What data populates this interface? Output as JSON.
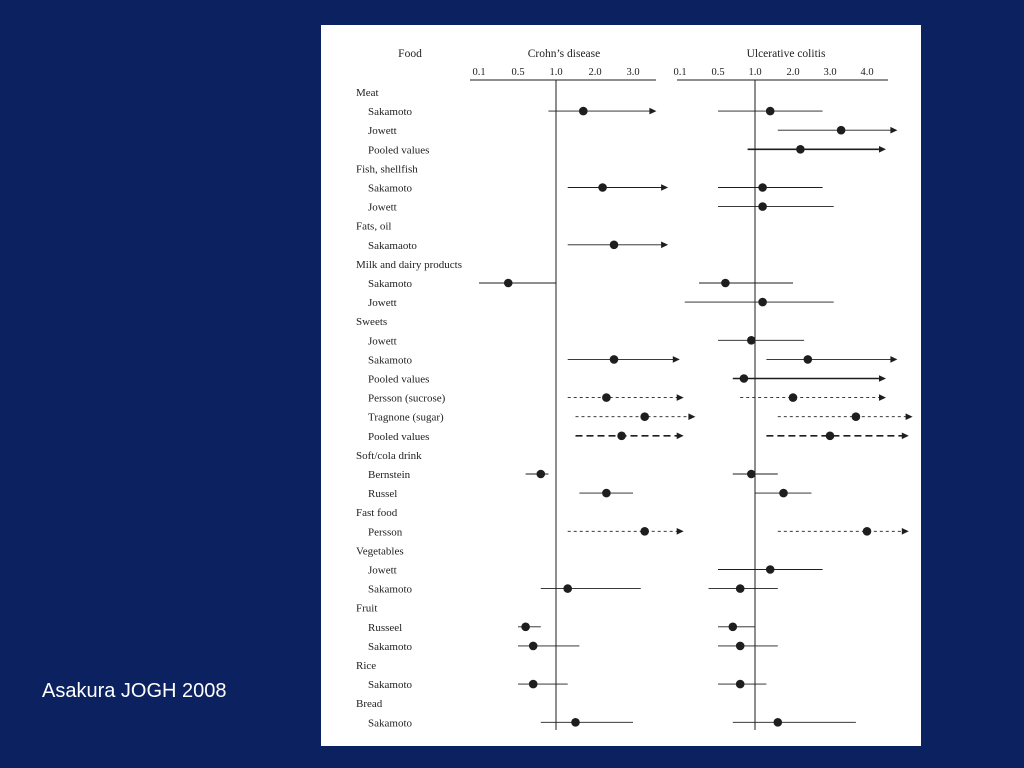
{
  "caption": "Asakura JOGH 2008",
  "chart_data": {
    "type": "forest",
    "food_header": "Food",
    "panels": [
      {
        "key": "cd",
        "title": "Crohn’s disease",
        "ticks": [
          {
            "label": "0.1",
            "value": 0.1
          },
          {
            "label": "0.5",
            "value": 0.5
          },
          {
            "label": "1.0",
            "value": 1.0
          },
          {
            "label": "2.0",
            "value": 2.0
          },
          {
            "label": "3.0",
            "value": 3.0
          }
        ]
      },
      {
        "key": "uc",
        "title": "Ulcerative colitis",
        "ticks": [
          {
            "label": "0.1",
            "value": 0.1
          },
          {
            "label": "0.5",
            "value": 0.5
          },
          {
            "label": "1.0",
            "value": 1.0
          },
          {
            "label": "2.0",
            "value": 2.0
          },
          {
            "label": "3.0",
            "value": 3.0
          },
          {
            "label": "4.0",
            "value": 4.0
          }
        ]
      }
    ],
    "rows": [
      {
        "label": "Meat",
        "kind": "category"
      },
      {
        "label": "Sakamoto",
        "kind": "study",
        "cd": {
          "or": 1.7,
          "lo": 0.9,
          "hi": 3.6,
          "arrow": true,
          "style": "solid"
        },
        "uc": {
          "or": 1.4,
          "lo": 0.5,
          "hi": 2.8,
          "arrow": false,
          "style": "solid"
        }
      },
      {
        "label": "Jowett",
        "kind": "study",
        "cd": null,
        "uc": {
          "or": 3.3,
          "lo": 1.6,
          "hi": 4.8,
          "arrow": true,
          "style": "solid"
        }
      },
      {
        "label": "Pooled values",
        "kind": "study",
        "cd": null,
        "uc": {
          "or": 2.2,
          "lo": 0.9,
          "hi": 4.5,
          "arrow": true,
          "style": "pooled"
        }
      },
      {
        "label": "Fish, shellfish",
        "kind": "category"
      },
      {
        "label": "Sakamoto",
        "kind": "study",
        "cd": {
          "or": 2.2,
          "lo": 1.3,
          "hi": 3.9,
          "arrow": true,
          "style": "solid"
        },
        "uc": {
          "or": 1.2,
          "lo": 0.5,
          "hi": 2.8,
          "arrow": false,
          "style": "solid"
        }
      },
      {
        "label": "Jowett",
        "kind": "study",
        "cd": null,
        "uc": {
          "or": 1.2,
          "lo": 0.5,
          "hi": 3.1,
          "arrow": false,
          "style": "solid"
        }
      },
      {
        "label": "Fats, oil",
        "kind": "category"
      },
      {
        "label": "Sakamaoto",
        "kind": "study",
        "cd": {
          "or": 2.5,
          "lo": 1.3,
          "hi": 3.9,
          "arrow": true,
          "style": "solid"
        },
        "uc": null
      },
      {
        "label": "Milk and dairy products",
        "kind": "category"
      },
      {
        "label": "Sakamoto",
        "kind": "study",
        "cd": {
          "or": 0.4,
          "lo": 0.1,
          "hi": 1.0,
          "arrow": false,
          "style": "solid"
        },
        "uc": {
          "or": 0.6,
          "lo": 0.3,
          "hi": 2.0,
          "arrow": false,
          "style": "solid"
        }
      },
      {
        "label": "Jowett",
        "kind": "study",
        "cd": null,
        "uc": {
          "or": 1.2,
          "lo": 0.15,
          "hi": 3.1,
          "arrow": false,
          "style": "solid"
        }
      },
      {
        "label": "Sweets",
        "kind": "category"
      },
      {
        "label": "Jowett",
        "kind": "study",
        "cd": null,
        "uc": {
          "or": 0.95,
          "lo": 0.5,
          "hi": 2.3,
          "arrow": false,
          "style": "solid"
        }
      },
      {
        "label": "Sakamoto",
        "kind": "study",
        "cd": {
          "or": 2.5,
          "lo": 1.3,
          "hi": 4.2,
          "arrow": true,
          "style": "solid"
        },
        "uc": {
          "or": 2.4,
          "lo": 1.3,
          "hi": 4.8,
          "arrow": true,
          "style": "solid"
        }
      },
      {
        "label": "Pooled values",
        "kind": "study",
        "cd": null,
        "uc": {
          "or": 0.85,
          "lo": 0.7,
          "hi": 4.5,
          "arrow": true,
          "style": "pooled"
        }
      },
      {
        "label": "Persson (sucrose)",
        "kind": "study",
        "cd": {
          "or": 2.3,
          "lo": 1.3,
          "hi": 4.3,
          "arrow": true,
          "style": "dashed"
        },
        "uc": {
          "or": 2.0,
          "lo": 0.8,
          "hi": 4.5,
          "arrow": true,
          "style": "dashed"
        }
      },
      {
        "label": "Tragnone (sugar)",
        "kind": "study",
        "cd": {
          "or": 3.3,
          "lo": 1.5,
          "hi": 4.6,
          "arrow": true,
          "style": "dashed"
        },
        "uc": {
          "or": 3.7,
          "lo": 1.6,
          "hi": 5.2,
          "arrow": true,
          "style": "dashed"
        }
      },
      {
        "label": "Pooled values",
        "kind": "study",
        "cd": {
          "or": 2.7,
          "lo": 1.5,
          "hi": 4.3,
          "arrow": true,
          "style": "pooled-dashed"
        },
        "uc": {
          "or": 3.0,
          "lo": 1.3,
          "hi": 5.1,
          "arrow": true,
          "style": "pooled-dashed"
        }
      },
      {
        "label": "Soft/cola drink",
        "kind": "category"
      },
      {
        "label": "Bernstein",
        "kind": "study",
        "cd": {
          "or": 0.8,
          "lo": 0.6,
          "hi": 0.9,
          "arrow": false,
          "style": "solid"
        },
        "uc": {
          "or": 0.95,
          "lo": 0.7,
          "hi": 1.6,
          "arrow": false,
          "style": "solid"
        }
      },
      {
        "label": "Russel",
        "kind": "study",
        "cd": {
          "or": 2.3,
          "lo": 1.6,
          "hi": 3.0,
          "arrow": false,
          "style": "solid"
        },
        "uc": {
          "or": 1.75,
          "lo": 1.0,
          "hi": 2.5,
          "arrow": false,
          "style": "solid"
        }
      },
      {
        "label": "Fast food",
        "kind": "category"
      },
      {
        "label": "Persson",
        "kind": "study",
        "cd": {
          "or": 3.3,
          "lo": 1.3,
          "hi": 4.3,
          "arrow": true,
          "style": "dashed"
        },
        "uc": {
          "or": 4.0,
          "lo": 1.6,
          "hi": 5.1,
          "arrow": true,
          "style": "dashed"
        }
      },
      {
        "label": "Vegetables",
        "kind": "category"
      },
      {
        "label": "Jowett",
        "kind": "study",
        "cd": null,
        "uc": {
          "or": 1.4,
          "lo": 0.5,
          "hi": 2.8,
          "arrow": false,
          "style": "solid"
        }
      },
      {
        "label": "Sakamoto",
        "kind": "study",
        "cd": {
          "or": 1.3,
          "lo": 0.8,
          "hi": 3.2,
          "arrow": false,
          "style": "solid"
        },
        "uc": {
          "or": 0.8,
          "lo": 0.4,
          "hi": 1.6,
          "arrow": false,
          "style": "solid"
        }
      },
      {
        "label": "Fruit",
        "kind": "category"
      },
      {
        "label": "Russeel",
        "kind": "study",
        "cd": {
          "or": 0.6,
          "lo": 0.5,
          "hi": 0.8,
          "arrow": false,
          "style": "solid"
        },
        "uc": {
          "or": 0.7,
          "lo": 0.5,
          "hi": 1.0,
          "arrow": false,
          "style": "solid"
        }
      },
      {
        "label": "Sakamoto",
        "kind": "study",
        "cd": {
          "or": 0.7,
          "lo": 0.5,
          "hi": 1.6,
          "arrow": false,
          "style": "solid"
        },
        "uc": {
          "or": 0.8,
          "lo": 0.5,
          "hi": 1.6,
          "arrow": false,
          "style": "solid"
        }
      },
      {
        "label": "Rice",
        "kind": "category"
      },
      {
        "label": "Sakamoto",
        "kind": "study",
        "cd": {
          "or": 0.7,
          "lo": 0.5,
          "hi": 1.3,
          "arrow": false,
          "style": "solid"
        },
        "uc": {
          "or": 0.8,
          "lo": 0.5,
          "hi": 1.3,
          "arrow": false,
          "style": "solid"
        }
      },
      {
        "label": "Bread",
        "kind": "category"
      },
      {
        "label": "Sakamoto",
        "kind": "study",
        "cd": {
          "or": 1.5,
          "lo": 0.8,
          "hi": 3.0,
          "arrow": false,
          "style": "solid"
        },
        "uc": {
          "or": 1.6,
          "lo": 0.7,
          "hi": 3.7,
          "arrow": false,
          "style": "solid"
        }
      }
    ]
  }
}
